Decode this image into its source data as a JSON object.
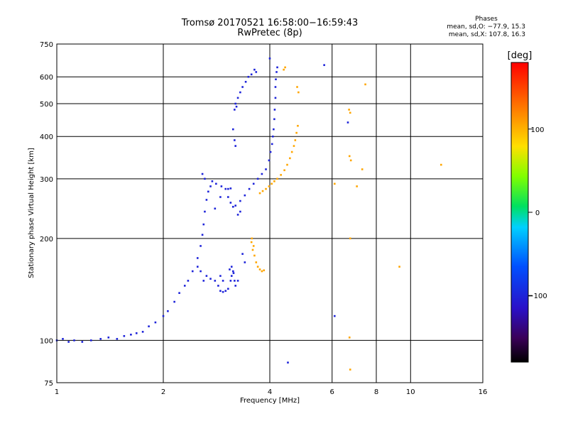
{
  "chart_data": {
    "type": "scatter",
    "title": "Tromsø 20170521 16:58:00−16:59:43",
    "subtitle": "RwPretec (8p)",
    "phase_header": "Phases",
    "phase_line_o": "mean, sd,O: −77.9, 15.3",
    "phase_line_x": "mean, sd,X: 107.8, 16.3",
    "xlabel": "Frequency [MHz]",
    "ylabel": "Stationary phase Virtual Height [km]",
    "x_scale": "log",
    "y_scale": "log",
    "xlim": [
      1,
      16
    ],
    "ylim": [
      75,
      750
    ],
    "x_ticks": [
      {
        "v": 1,
        "label": "1"
      },
      {
        "v": 2,
        "label": "2"
      },
      {
        "v": 4,
        "label": "4"
      },
      {
        "v": 6,
        "label": "6"
      },
      {
        "v": 8,
        "label": "8"
      },
      {
        "v": 10,
        "label": "10"
      },
      {
        "v": 16,
        "label": "16"
      }
    ],
    "y_ticks": [
      {
        "v": 75,
        "label": "75"
      },
      {
        "v": 100,
        "label": "100"
      },
      {
        "v": 200,
        "label": "200"
      },
      {
        "v": 300,
        "label": "300"
      },
      {
        "v": 400,
        "label": "400"
      },
      {
        "v": 500,
        "label": "500"
      },
      {
        "v": 600,
        "label": "600"
      },
      {
        "v": 750,
        "label": "750"
      }
    ],
    "grid": true,
    "colorbar": {
      "label": "[deg]",
      "min": -180,
      "max": 180,
      "ticks": [
        {
          "v": 100,
          "label": "100"
        },
        {
          "v": 0,
          "label": "0"
        },
        {
          "v": -100,
          "label": "−100"
        }
      ]
    },
    "series": [
      {
        "name": "O",
        "phase": -100,
        "points": [
          [
            1.0,
            100
          ],
          [
            1.04,
            101
          ],
          [
            1.08,
            99
          ],
          [
            1.12,
            100
          ],
          [
            1.18,
            99
          ],
          [
            1.25,
            100
          ],
          [
            1.33,
            101
          ],
          [
            1.4,
            102
          ],
          [
            1.48,
            101
          ],
          [
            1.55,
            103
          ],
          [
            1.62,
            104
          ],
          [
            1.68,
            105
          ],
          [
            1.75,
            106
          ],
          [
            1.82,
            110
          ],
          [
            1.9,
            113
          ],
          [
            2.0,
            118
          ],
          [
            2.06,
            122
          ],
          [
            2.15,
            130
          ],
          [
            2.22,
            138
          ],
          [
            2.3,
            145
          ],
          [
            2.35,
            150
          ],
          [
            2.42,
            160
          ],
          [
            2.5,
            165
          ],
          [
            2.55,
            160
          ],
          [
            2.6,
            150
          ],
          [
            2.65,
            155
          ],
          [
            2.72,
            152
          ],
          [
            2.8,
            150
          ],
          [
            2.86,
            145
          ],
          [
            2.9,
            140
          ],
          [
            2.95,
            139
          ],
          [
            3.0,
            140
          ],
          [
            3.05,
            142
          ],
          [
            3.1,
            150
          ],
          [
            3.12,
            155
          ],
          [
            3.15,
            160
          ],
          [
            3.12,
            165
          ],
          [
            3.16,
            158
          ],
          [
            3.08,
            162
          ],
          [
            3.18,
            150
          ],
          [
            2.5,
            175
          ],
          [
            2.55,
            190
          ],
          [
            2.58,
            205
          ],
          [
            2.6,
            220
          ],
          [
            2.62,
            240
          ],
          [
            2.65,
            260
          ],
          [
            2.68,
            275
          ],
          [
            2.72,
            285
          ],
          [
            2.62,
            300
          ],
          [
            2.58,
            310
          ],
          [
            2.75,
            295
          ],
          [
            2.82,
            290
          ],
          [
            2.92,
            285
          ],
          [
            3.0,
            280
          ],
          [
            3.05,
            280
          ],
          [
            3.1,
            281
          ],
          [
            3.05,
            265
          ],
          [
            3.1,
            255
          ],
          [
            3.15,
            248
          ],
          [
            3.2,
            250
          ],
          [
            3.3,
            258
          ],
          [
            3.4,
            268
          ],
          [
            3.5,
            280
          ],
          [
            3.6,
            290
          ],
          [
            3.7,
            300
          ],
          [
            3.8,
            310
          ],
          [
            3.9,
            320
          ],
          [
            3.98,
            340
          ],
          [
            4.02,
            360
          ],
          [
            4.06,
            380
          ],
          [
            4.08,
            400
          ],
          [
            4.1,
            420
          ],
          [
            4.12,
            450
          ],
          [
            4.13,
            480
          ],
          [
            4.15,
            520
          ],
          [
            4.15,
            560
          ],
          [
            4.16,
            590
          ],
          [
            4.18,
            620
          ],
          [
            4.2,
            640
          ],
          [
            4.0,
            680
          ],
          [
            3.18,
            480
          ],
          [
            3.22,
            490
          ],
          [
            3.2,
            500
          ],
          [
            3.25,
            520
          ],
          [
            3.3,
            540
          ],
          [
            3.35,
            560
          ],
          [
            3.42,
            580
          ],
          [
            3.48,
            600
          ],
          [
            3.55,
            610
          ],
          [
            3.62,
            630
          ],
          [
            3.66,
            620
          ],
          [
            3.15,
            420
          ],
          [
            3.18,
            390
          ],
          [
            3.2,
            375
          ],
          [
            2.9,
            265
          ],
          [
            3.25,
            235
          ],
          [
            3.3,
            240
          ],
          [
            2.8,
            245
          ],
          [
            3.4,
            170
          ],
          [
            3.35,
            180
          ],
          [
            4.5,
            86
          ],
          [
            5.7,
            650
          ],
          [
            6.1,
            118
          ],
          [
            6.65,
            440
          ],
          [
            2.9,
            155
          ],
          [
            2.95,
            150
          ],
          [
            3.2,
            145
          ],
          [
            3.25,
            150
          ]
        ]
      },
      {
        "name": "X",
        "phase": 105,
        "points": [
          [
            3.75,
            272
          ],
          [
            3.82,
            276
          ],
          [
            3.9,
            280
          ],
          [
            3.98,
            285
          ],
          [
            4.05,
            290
          ],
          [
            4.12,
            295
          ],
          [
            4.2,
            300
          ],
          [
            4.3,
            308
          ],
          [
            4.4,
            318
          ],
          [
            4.48,
            330
          ],
          [
            4.56,
            345
          ],
          [
            4.62,
            360
          ],
          [
            4.68,
            375
          ],
          [
            4.72,
            390
          ],
          [
            4.76,
            410
          ],
          [
            4.8,
            430
          ],
          [
            3.55,
            195
          ],
          [
            3.58,
            185
          ],
          [
            3.62,
            178
          ],
          [
            3.66,
            170
          ],
          [
            3.7,
            165
          ],
          [
            3.75,
            162
          ],
          [
            3.8,
            160
          ],
          [
            3.85,
            161
          ],
          [
            3.6,
            190
          ],
          [
            3.56,
            200
          ],
          [
            4.38,
            630
          ],
          [
            4.42,
            640
          ],
          [
            4.78,
            560
          ],
          [
            4.82,
            540
          ],
          [
            6.7,
            480
          ],
          [
            6.75,
            470
          ],
          [
            6.72,
            350
          ],
          [
            6.78,
            340
          ],
          [
            7.3,
            320
          ],
          [
            7.45,
            570
          ],
          [
            6.75,
            200
          ],
          [
            6.72,
            102
          ],
          [
            6.75,
            82
          ],
          [
            9.3,
            165
          ],
          [
            6.1,
            290
          ],
          [
            7.05,
            285
          ],
          [
            12.2,
            330
          ]
        ]
      }
    ]
  }
}
